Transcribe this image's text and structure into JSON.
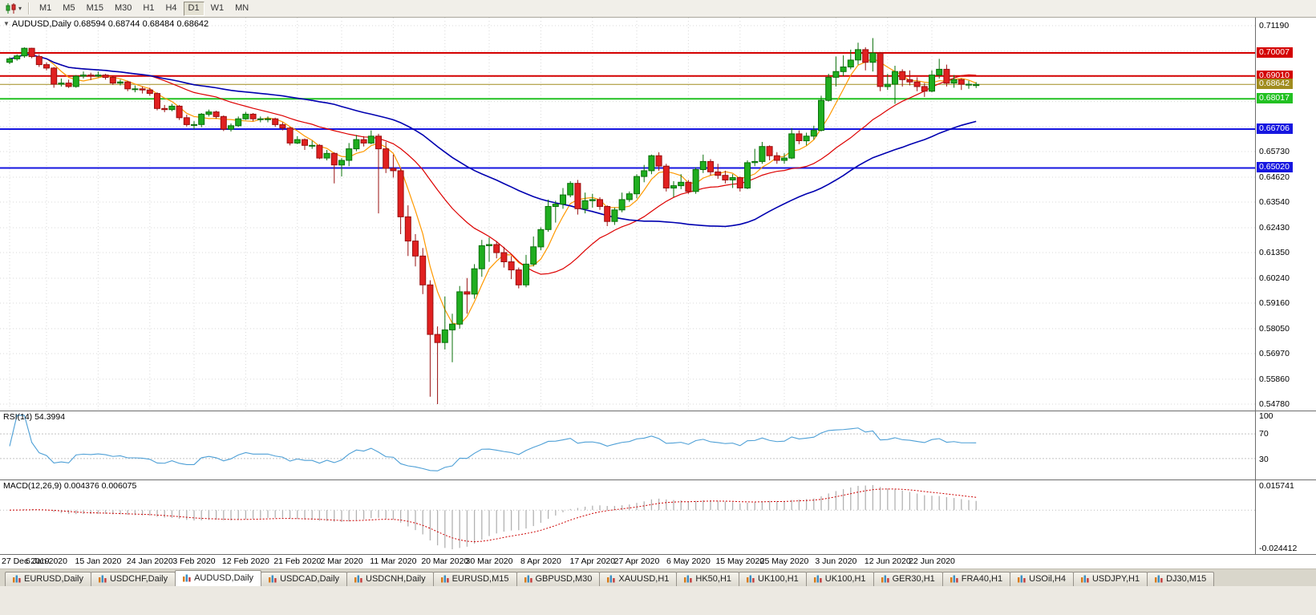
{
  "toolbar": {
    "timeframes": [
      "M1",
      "M5",
      "M15",
      "M30",
      "H1",
      "H4",
      "D1",
      "W1",
      "MN"
    ],
    "active_timeframe": "D1",
    "chart_type_dropdown_icon": "▾"
  },
  "chart": {
    "dropdown_icon": "▼",
    "title": "AUDUSD,Daily",
    "ohlc": "0.68594 0.68744 0.68484 0.68642"
  },
  "rsi": {
    "label": "RSI(14) 54.3994",
    "period": 14,
    "value": 54.3994,
    "line_color": "#4d9fd6",
    "levels": [
      {
        "text": "100",
        "v": 100
      },
      {
        "text": "70",
        "v": 70
      },
      {
        "text": "30",
        "v": 30
      }
    ]
  },
  "macd": {
    "label": "MACD(12,26,9) 0.004376 0.006075",
    "fast": 12,
    "slow": 26,
    "signal_period": 9,
    "value": 0.004376,
    "signal_value": 0.006075,
    "scale_max": "0.015741",
    "scale_min": "-0.024412",
    "hist_color": "#b2b2b2",
    "signal_color": "#cc0000"
  },
  "tabs": [
    {
      "label": "EURUSD,Daily"
    },
    {
      "label": "USDCHF,Daily"
    },
    {
      "label": "AUDUSD,Daily",
      "active": true
    },
    {
      "label": "USDCAD,Daily"
    },
    {
      "label": "USDCNH,Daily"
    },
    {
      "label": "EURUSD,M15"
    },
    {
      "label": "GBPUSD,M30"
    },
    {
      "label": "XAUUSD,H1"
    },
    {
      "label": "HK50,H1"
    },
    {
      "label": "UK100,H1"
    },
    {
      "label": "UK100,H1"
    },
    {
      "label": "GER30,H1"
    },
    {
      "label": "FRA40,H1"
    },
    {
      "label": "USOil,H4"
    },
    {
      "label": "USDJPY,H1"
    },
    {
      "label": "DJ30,M15"
    }
  ],
  "chart_data": {
    "type": "candlestick",
    "symbol": "AUDUSD",
    "timeframe": "Daily",
    "ohlc_current": {
      "open": 0.68594,
      "high": 0.68744,
      "low": 0.68484,
      "close": 0.68642
    },
    "price_range": [
      0.5478,
      0.7119
    ],
    "bull_color": "#1fae1f",
    "bull_edge": "#0a700a",
    "bear_color": "#e02020",
    "bear_edge": "#991010",
    "y_ticks": [
      {
        "text": "0.71190",
        "v": 0.7119
      },
      {
        "text": "0.65730",
        "v": 0.6573
      },
      {
        "text": "0.64620",
        "v": 0.6462
      },
      {
        "text": "0.63540",
        "v": 0.6354
      },
      {
        "text": "0.62430",
        "v": 0.6243
      },
      {
        "text": "0.61350",
        "v": 0.6135
      },
      {
        "text": "0.60240",
        "v": 0.6024
      },
      {
        "text": "0.59160",
        "v": 0.5916
      },
      {
        "text": "0.58050",
        "v": 0.5805
      },
      {
        "text": "0.56970",
        "v": 0.5697
      },
      {
        "text": "0.55860",
        "v": 0.5586
      },
      {
        "text": "0.54780",
        "v": 0.5478
      }
    ],
    "grid_extra": [
      0.7008,
      0.6899,
      0.679,
      0.6681
    ],
    "hlines": [
      {
        "price": 0.70007,
        "text": "0.70007",
        "color": "#d40000",
        "width": 2
      },
      {
        "price": 0.6901,
        "text": "0.69010",
        "color": "#d40000",
        "width": 2
      },
      {
        "price": 0.68642,
        "text": "0.68642",
        "color": "#a08c1e",
        "width": 1,
        "current": true
      },
      {
        "price": 0.68017,
        "text": "0.68017",
        "color": "#22c122",
        "width": 2
      },
      {
        "price": 0.66706,
        "text": "0.66706",
        "color": "#1616e0",
        "width": 2
      },
      {
        "price": 0.6502,
        "text": "0.65020",
        "color": "#1616e0",
        "width": 2
      }
    ],
    "ma": [
      {
        "period": 5,
        "color": "#ff9900",
        "width": 1.2
      },
      {
        "period": 20,
        "color": "#dd0000",
        "width": 1.2
      },
      {
        "period": 45,
        "color": "#0000b0",
        "width": 1.6
      }
    ],
    "x_labels": [
      {
        "text": "27 Dec 2019",
        "i": 0
      },
      {
        "text": "6 Jan 2020",
        "i": 5
      },
      {
        "text": "15 Jan 2020",
        "i": 12
      },
      {
        "text": "24 Jan 2020",
        "i": 19
      },
      {
        "text": "3 Feb 2020",
        "i": 25
      },
      {
        "text": "12 Feb 2020",
        "i": 32
      },
      {
        "text": "21 Feb 2020",
        "i": 39
      },
      {
        "text": "2 Mar 2020",
        "i": 45
      },
      {
        "text": "11 Mar 2020",
        "i": 52
      },
      {
        "text": "20 Mar 2020",
        "i": 59
      },
      {
        "text": "30 Mar 2020",
        "i": 65
      },
      {
        "text": "8 Apr 2020",
        "i": 72
      },
      {
        "text": "17 Apr 2020",
        "i": 79
      },
      {
        "text": "27 Apr 2020",
        "i": 85
      },
      {
        "text": "6 May 2020",
        "i": 92
      },
      {
        "text": "15 May 2020",
        "i": 99
      },
      {
        "text": "25 May 2020",
        "i": 105
      },
      {
        "text": "3 Jun 2020",
        "i": 112
      },
      {
        "text": "12 Jun 2020",
        "i": 119
      },
      {
        "text": "22 Jun 2020",
        "i": 125
      }
    ],
    "candles": [
      [
        0.696,
        0.6982,
        0.6952,
        0.6975
      ],
      [
        0.6975,
        0.6995,
        0.6967,
        0.6988
      ],
      [
        0.6988,
        0.7025,
        0.698,
        0.7021
      ],
      [
        0.7021,
        0.7023,
        0.6978,
        0.6985
      ],
      [
        0.6985,
        0.6995,
        0.694,
        0.695
      ],
      [
        0.695,
        0.696,
        0.6925,
        0.6935
      ],
      [
        0.6935,
        0.694,
        0.685,
        0.6865
      ],
      [
        0.6865,
        0.689,
        0.6855,
        0.687
      ],
      [
        0.687,
        0.6885,
        0.6849,
        0.6855
      ],
      [
        0.6855,
        0.6905,
        0.685,
        0.69
      ],
      [
        0.69,
        0.692,
        0.689,
        0.6905
      ],
      [
        0.6905,
        0.6915,
        0.6883,
        0.69
      ],
      [
        0.69,
        0.692,
        0.6895,
        0.6905
      ],
      [
        0.6905,
        0.691,
        0.6885,
        0.6895
      ],
      [
        0.6895,
        0.69,
        0.6862,
        0.687
      ],
      [
        0.687,
        0.6885,
        0.686,
        0.6875
      ],
      [
        0.6875,
        0.688,
        0.6835,
        0.6845
      ],
      [
        0.6845,
        0.686,
        0.683,
        0.6845
      ],
      [
        0.6845,
        0.6855,
        0.6825,
        0.684
      ],
      [
        0.684,
        0.685,
        0.6815,
        0.6825
      ],
      [
        0.6825,
        0.683,
        0.6752,
        0.676
      ],
      [
        0.676,
        0.6775,
        0.6744,
        0.6755
      ],
      [
        0.6755,
        0.678,
        0.6748,
        0.677
      ],
      [
        0.677,
        0.6775,
        0.671,
        0.672
      ],
      [
        0.672,
        0.6733,
        0.6682,
        0.669
      ],
      [
        0.669,
        0.6705,
        0.667,
        0.669
      ],
      [
        0.669,
        0.674,
        0.6678,
        0.6735
      ],
      [
        0.6735,
        0.6755,
        0.6725,
        0.6745
      ],
      [
        0.6745,
        0.675,
        0.6715,
        0.6725
      ],
      [
        0.6725,
        0.673,
        0.6662,
        0.667
      ],
      [
        0.667,
        0.6695,
        0.666,
        0.6685
      ],
      [
        0.6685,
        0.6725,
        0.668,
        0.6715
      ],
      [
        0.6715,
        0.6745,
        0.671,
        0.6735
      ],
      [
        0.6735,
        0.674,
        0.6705,
        0.6715
      ],
      [
        0.6715,
        0.6725,
        0.67,
        0.6715
      ],
      [
        0.6715,
        0.6725,
        0.67,
        0.6715
      ],
      [
        0.6715,
        0.672,
        0.668,
        0.669
      ],
      [
        0.669,
        0.67,
        0.6665,
        0.6675
      ],
      [
        0.6675,
        0.668,
        0.66,
        0.661
      ],
      [
        0.661,
        0.664,
        0.6605,
        0.6625
      ],
      [
        0.6625,
        0.663,
        0.658,
        0.66
      ],
      [
        0.66,
        0.662,
        0.6585,
        0.66
      ],
      [
        0.66,
        0.6605,
        0.654,
        0.6545
      ],
      [
        0.6545,
        0.658,
        0.6535,
        0.6565
      ],
      [
        0.6565,
        0.657,
        0.6435,
        0.6515
      ],
      [
        0.6515,
        0.6545,
        0.6465,
        0.6535
      ],
      [
        0.6535,
        0.661,
        0.651,
        0.6585
      ],
      [
        0.6585,
        0.6645,
        0.6575,
        0.6625
      ],
      [
        0.6625,
        0.664,
        0.6595,
        0.661
      ],
      [
        0.661,
        0.6665,
        0.6605,
        0.664
      ],
      [
        0.664,
        0.665,
        0.6305,
        0.6585
      ],
      [
        0.6585,
        0.6615,
        0.648,
        0.65
      ],
      [
        0.65,
        0.656,
        0.646,
        0.649
      ],
      [
        0.649,
        0.65,
        0.6215,
        0.629
      ],
      [
        0.629,
        0.634,
        0.612,
        0.6185
      ],
      [
        0.6185,
        0.6215,
        0.6075,
        0.612
      ],
      [
        0.612,
        0.6155,
        0.5955,
        0.5995
      ],
      [
        0.5995,
        0.6015,
        0.551,
        0.578
      ],
      [
        0.578,
        0.5815,
        0.5478,
        0.5745
      ],
      [
        0.5745,
        0.5945,
        0.5715,
        0.58
      ],
      [
        0.58,
        0.587,
        0.566,
        0.5825
      ],
      [
        0.5825,
        0.599,
        0.5805,
        0.5965
      ],
      [
        0.5965,
        0.6025,
        0.587,
        0.5955
      ],
      [
        0.5955,
        0.6085,
        0.5935,
        0.6065
      ],
      [
        0.6065,
        0.619,
        0.603,
        0.6165
      ],
      [
        0.6165,
        0.62,
        0.6095,
        0.617
      ],
      [
        0.617,
        0.6185,
        0.611,
        0.6135
      ],
      [
        0.6135,
        0.616,
        0.607,
        0.6095
      ],
      [
        0.6095,
        0.612,
        0.602,
        0.606
      ],
      [
        0.606,
        0.607,
        0.598,
        0.5995
      ],
      [
        0.5995,
        0.6125,
        0.5985,
        0.6085
      ],
      [
        0.6085,
        0.6205,
        0.6075,
        0.616
      ],
      [
        0.616,
        0.6245,
        0.6145,
        0.6235
      ],
      [
        0.6235,
        0.6365,
        0.6225,
        0.6335
      ],
      [
        0.6335,
        0.636,
        0.6265,
        0.6345
      ],
      [
        0.6345,
        0.6415,
        0.6325,
        0.6385
      ],
      [
        0.6385,
        0.6445,
        0.6375,
        0.6435
      ],
      [
        0.6435,
        0.645,
        0.63,
        0.6325
      ],
      [
        0.6325,
        0.6395,
        0.6305,
        0.636
      ],
      [
        0.636,
        0.639,
        0.633,
        0.6365
      ],
      [
        0.6365,
        0.6375,
        0.632,
        0.6335
      ],
      [
        0.6335,
        0.634,
        0.625,
        0.627
      ],
      [
        0.627,
        0.633,
        0.6255,
        0.632
      ],
      [
        0.632,
        0.6395,
        0.631,
        0.6365
      ],
      [
        0.6365,
        0.64,
        0.6355,
        0.639
      ],
      [
        0.639,
        0.6475,
        0.637,
        0.6465
      ],
      [
        0.6465,
        0.6515,
        0.644,
        0.649
      ],
      [
        0.649,
        0.656,
        0.6475,
        0.6555
      ],
      [
        0.6555,
        0.657,
        0.649,
        0.651
      ],
      [
        0.651,
        0.652,
        0.64,
        0.6415
      ],
      [
        0.6415,
        0.6445,
        0.6375,
        0.6425
      ],
      [
        0.6425,
        0.6475,
        0.641,
        0.644
      ],
      [
        0.644,
        0.645,
        0.639,
        0.64
      ],
      [
        0.64,
        0.6505,
        0.639,
        0.6495
      ],
      [
        0.6495,
        0.656,
        0.648,
        0.653
      ],
      [
        0.653,
        0.654,
        0.647,
        0.6485
      ],
      [
        0.6485,
        0.652,
        0.6455,
        0.647
      ],
      [
        0.647,
        0.649,
        0.6435,
        0.645
      ],
      [
        0.645,
        0.6475,
        0.6415,
        0.646
      ],
      [
        0.646,
        0.6465,
        0.64,
        0.6415
      ],
      [
        0.6415,
        0.6535,
        0.641,
        0.6525
      ],
      [
        0.6525,
        0.6585,
        0.651,
        0.653
      ],
      [
        0.653,
        0.6615,
        0.652,
        0.6595
      ],
      [
        0.6595,
        0.66,
        0.6535,
        0.6555
      ],
      [
        0.6555,
        0.657,
        0.652,
        0.6535
      ],
      [
        0.6535,
        0.6565,
        0.652,
        0.6545
      ],
      [
        0.6545,
        0.6675,
        0.654,
        0.665
      ],
      [
        0.665,
        0.6665,
        0.6605,
        0.662
      ],
      [
        0.662,
        0.6655,
        0.66,
        0.664
      ],
      [
        0.664,
        0.6685,
        0.6625,
        0.6665
      ],
      [
        0.6665,
        0.6815,
        0.666,
        0.6795
      ],
      [
        0.6795,
        0.691,
        0.679,
        0.6895
      ],
      [
        0.6895,
        0.6985,
        0.6855,
        0.692
      ],
      [
        0.692,
        0.699,
        0.69,
        0.694
      ],
      [
        0.694,
        0.7015,
        0.693,
        0.697
      ],
      [
        0.697,
        0.7045,
        0.695,
        0.7015
      ],
      [
        0.7015,
        0.7025,
        0.6925,
        0.696
      ],
      [
        0.696,
        0.7065,
        0.692,
        0.7
      ],
      [
        0.7,
        0.7005,
        0.6835,
        0.6855
      ],
      [
        0.6855,
        0.691,
        0.684,
        0.6865
      ],
      [
        0.6865,
        0.6945,
        0.678,
        0.692
      ],
      [
        0.692,
        0.693,
        0.6855,
        0.6885
      ],
      [
        0.6885,
        0.6925,
        0.686,
        0.6875
      ],
      [
        0.6875,
        0.6895,
        0.6835,
        0.6855
      ],
      [
        0.6855,
        0.687,
        0.681,
        0.6835
      ],
      [
        0.6835,
        0.6925,
        0.683,
        0.6905
      ],
      [
        0.6905,
        0.6975,
        0.689,
        0.693
      ],
      [
        0.693,
        0.695,
        0.6855,
        0.687
      ],
      [
        0.687,
        0.6905,
        0.685,
        0.6885
      ],
      [
        0.6885,
        0.689,
        0.684,
        0.6865
      ],
      [
        0.6865,
        0.688,
        0.6845,
        0.6865
      ],
      [
        0.68594,
        0.68744,
        0.68484,
        0.68642
      ]
    ]
  }
}
